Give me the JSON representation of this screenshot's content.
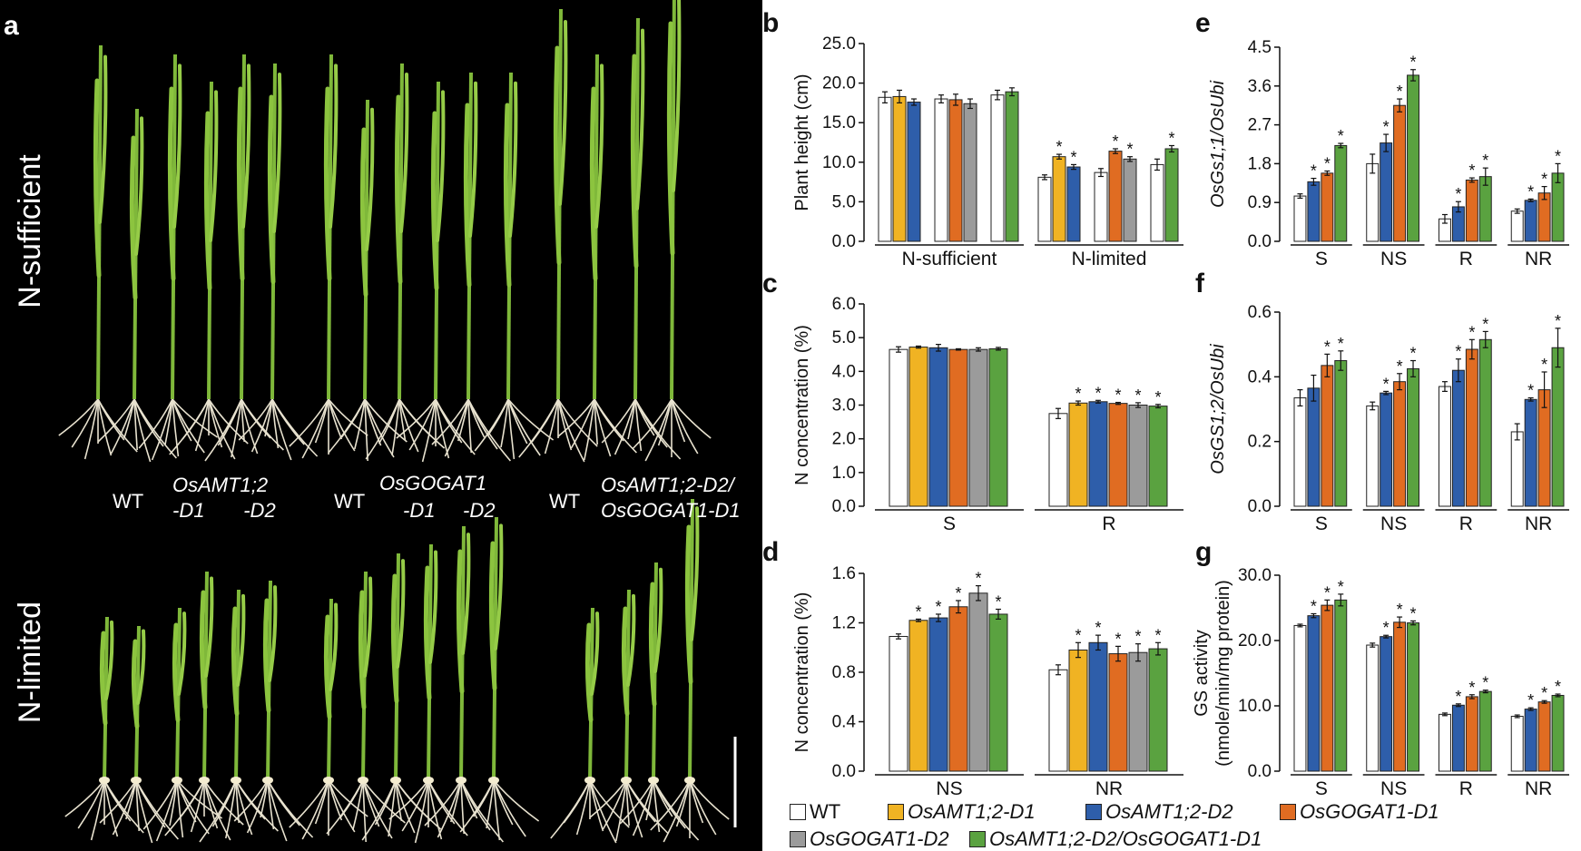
{
  "figure": {
    "panel_a": {
      "letter": "a",
      "conditions": [
        "N-sufficient",
        "N-limited"
      ],
      "genotype_labels": [
        {
          "lines": [
            "WT"
          ],
          "italic": false
        },
        {
          "lines": [
            "OsAMT1;2",
            "-D1       -D2"
          ],
          "italic": true
        },
        {
          "lines": [
            "WT"
          ],
          "italic": false
        },
        {
          "lines": [
            "OsGOGAT1",
            "-D1     -D2"
          ],
          "italic": true
        },
        {
          "lines": [
            "WT"
          ],
          "italic": false
        },
        {
          "lines": [
            "OsAMT1;2-D2/",
            "OsGOGAT1-D1"
          ],
          "italic": true
        }
      ]
    },
    "legend": [
      {
        "label": "WT",
        "color": "#ffffff",
        "italic": false
      },
      {
        "label": "OsAMT1;2-D1",
        "color": "#f0b323",
        "italic": true
      },
      {
        "label": "OsAMT1;2-D2",
        "color": "#2e5eaa",
        "italic": true
      },
      {
        "label": "OsGOGAT1-D1",
        "color": "#e06c22",
        "italic": true
      },
      {
        "label": "OsGOGAT1-D2",
        "color": "#9b9b9b",
        "italic": true
      },
      {
        "label": "OsAMT1;2-D2/OsGOGAT1-D1",
        "color": "#5aa240",
        "italic": true
      }
    ]
  },
  "chart_data": [
    {
      "panel": "b",
      "type": "bar",
      "ylabel": "Plant height (cm)",
      "ylabel_italic": false,
      "ylim": [
        0,
        25
      ],
      "yticks": [
        "0.0",
        "5.0",
        "10.0",
        "15.0",
        "20.0",
        "25.0"
      ],
      "groups": [
        {
          "label": "N-sufficient",
          "subgroups": [
            [
              {
                "s": 0,
                "v": 18.2,
                "e": 0.7
              },
              {
                "s": 1,
                "v": 18.3,
                "e": 0.8
              },
              {
                "s": 2,
                "v": 17.6,
                "e": 0.4
              }
            ],
            [
              {
                "s": 0,
                "v": 18.0,
                "e": 0.5
              },
              {
                "s": 3,
                "v": 17.9,
                "e": 0.7
              },
              {
                "s": 4,
                "v": 17.4,
                "e": 0.6
              }
            ],
            [
              {
                "s": 0,
                "v": 18.5,
                "e": 0.6
              },
              {
                "s": 5,
                "v": 18.9,
                "e": 0.5
              }
            ]
          ]
        },
        {
          "label": "N-limited",
          "subgroups": [
            [
              {
                "s": 0,
                "v": 8.1,
                "e": 0.3
              },
              {
                "s": 1,
                "v": 10.7,
                "e": 0.3,
                "star": true
              },
              {
                "s": 2,
                "v": 9.4,
                "e": 0.3,
                "star": true
              }
            ],
            [
              {
                "s": 0,
                "v": 8.7,
                "e": 0.5
              },
              {
                "s": 3,
                "v": 11.4,
                "e": 0.3,
                "star": true
              },
              {
                "s": 4,
                "v": 10.4,
                "e": 0.3,
                "star": true
              }
            ],
            [
              {
                "s": 0,
                "v": 9.7,
                "e": 0.7
              },
              {
                "s": 5,
                "v": 11.7,
                "e": 0.4,
                "star": true
              }
            ]
          ]
        }
      ]
    },
    {
      "panel": "c",
      "type": "bar",
      "ylabel": "N concentration (%)",
      "ylabel_italic": false,
      "ylim": [
        0,
        6
      ],
      "yticks": [
        "0.0",
        "1.0",
        "2.0",
        "3.0",
        "4.0",
        "5.0",
        "6.0"
      ],
      "groups": [
        {
          "label": "S",
          "subgroups": [
            [
              {
                "s": 0,
                "v": 4.65,
                "e": 0.08
              },
              {
                "s": 1,
                "v": 4.72,
                "e": 0.03
              },
              {
                "s": 2,
                "v": 4.7,
                "e": 0.1
              },
              {
                "s": 3,
                "v": 4.65,
                "e": 0.02
              },
              {
                "s": 4,
                "v": 4.65,
                "e": 0.05
              },
              {
                "s": 5,
                "v": 4.67,
                "e": 0.04
              }
            ]
          ]
        },
        {
          "label": "R",
          "subgroups": [
            [
              {
                "s": 0,
                "v": 2.75,
                "e": 0.15
              },
              {
                "s": 1,
                "v": 3.06,
                "e": 0.06,
                "star": true
              },
              {
                "s": 2,
                "v": 3.1,
                "e": 0.04,
                "star": true
              },
              {
                "s": 3,
                "v": 3.05,
                "e": 0.03,
                "star": true
              },
              {
                "s": 4,
                "v": 3.0,
                "e": 0.07,
                "star": true
              },
              {
                "s": 5,
                "v": 2.97,
                "e": 0.05,
                "star": true
              }
            ]
          ]
        }
      ]
    },
    {
      "panel": "d",
      "type": "bar",
      "ylabel": "N concentration (%)",
      "ylabel_italic": false,
      "ylim": [
        0,
        1.6
      ],
      "yticks": [
        "0.0",
        "0.4",
        "0.8",
        "1.2",
        "1.6"
      ],
      "groups": [
        {
          "label": "NS",
          "subgroups": [
            [
              {
                "s": 0,
                "v": 1.09,
                "e": 0.02
              },
              {
                "s": 1,
                "v": 1.22,
                "e": 0.01,
                "star": true
              },
              {
                "s": 2,
                "v": 1.24,
                "e": 0.03,
                "star": true
              },
              {
                "s": 3,
                "v": 1.33,
                "e": 0.05,
                "star": true
              },
              {
                "s": 4,
                "v": 1.44,
                "e": 0.06,
                "star": true
              },
              {
                "s": 5,
                "v": 1.27,
                "e": 0.04,
                "star": true
              }
            ]
          ]
        },
        {
          "label": "NR",
          "subgroups": [
            [
              {
                "s": 0,
                "v": 0.82,
                "e": 0.04
              },
              {
                "s": 1,
                "v": 0.98,
                "e": 0.06,
                "star": true
              },
              {
                "s": 2,
                "v": 1.04,
                "e": 0.06,
                "star": true
              },
              {
                "s": 3,
                "v": 0.95,
                "e": 0.06,
                "star": true
              },
              {
                "s": 4,
                "v": 0.96,
                "e": 0.07,
                "star": true
              },
              {
                "s": 5,
                "v": 0.99,
                "e": 0.05,
                "star": true
              }
            ]
          ]
        }
      ]
    },
    {
      "panel": "e",
      "type": "bar",
      "ylabel": "OsGs1;1/OsUbi",
      "ylabel_italic": true,
      "ylim": [
        0,
        4.5
      ],
      "yticks": [
        "0.0",
        "0.9",
        "1.8",
        "2.7",
        "3.6",
        "4.5"
      ],
      "groups": [
        {
          "label": "S",
          "subgroups": [
            [
              {
                "s": 0,
                "v": 1.05,
                "e": 0.05
              },
              {
                "s": 2,
                "v": 1.38,
                "e": 0.08,
                "star": true
              },
              {
                "s": 3,
                "v": 1.58,
                "e": 0.05,
                "star": true
              },
              {
                "s": 5,
                "v": 2.22,
                "e": 0.05,
                "star": true
              }
            ]
          ]
        },
        {
          "label": "NS",
          "subgroups": [
            [
              {
                "s": 0,
                "v": 1.8,
                "e": 0.22
              },
              {
                "s": 2,
                "v": 2.28,
                "e": 0.2,
                "star": true
              },
              {
                "s": 3,
                "v": 3.15,
                "e": 0.15,
                "star": true
              },
              {
                "s": 5,
                "v": 3.85,
                "e": 0.13,
                "star": true
              }
            ]
          ]
        },
        {
          "label": "R",
          "subgroups": [
            [
              {
                "s": 0,
                "v": 0.52,
                "e": 0.1
              },
              {
                "s": 2,
                "v": 0.8,
                "e": 0.12,
                "star": true
              },
              {
                "s": 3,
                "v": 1.42,
                "e": 0.05,
                "star": true
              },
              {
                "s": 5,
                "v": 1.5,
                "e": 0.2,
                "star": true
              }
            ]
          ]
        },
        {
          "label": "NR",
          "subgroups": [
            [
              {
                "s": 0,
                "v": 0.7,
                "e": 0.05
              },
              {
                "s": 2,
                "v": 0.95,
                "e": 0.03,
                "star": true
              },
              {
                "s": 3,
                "v": 1.12,
                "e": 0.15,
                "star": true
              },
              {
                "s": 5,
                "v": 1.58,
                "e": 0.22,
                "star": true
              }
            ]
          ]
        }
      ]
    },
    {
      "panel": "f",
      "type": "bar",
      "ylabel": "OsGS1;2/OsUbi",
      "ylabel_italic": true,
      "ylim": [
        0,
        0.6
      ],
      "yticks": [
        "0.0",
        "0.2",
        "0.4",
        "0.6"
      ],
      "groups": [
        {
          "label": "S",
          "subgroups": [
            [
              {
                "s": 0,
                "v": 0.335,
                "e": 0.025
              },
              {
                "s": 2,
                "v": 0.365,
                "e": 0.04
              },
              {
                "s": 3,
                "v": 0.435,
                "e": 0.035,
                "star": true
              },
              {
                "s": 5,
                "v": 0.45,
                "e": 0.03,
                "star": true
              }
            ]
          ]
        },
        {
          "label": "NS",
          "subgroups": [
            [
              {
                "s": 0,
                "v": 0.31,
                "e": 0.012
              },
              {
                "s": 2,
                "v": 0.35,
                "e": 0.005,
                "star": true
              },
              {
                "s": 3,
                "v": 0.385,
                "e": 0.025,
                "star": true
              },
              {
                "s": 5,
                "v": 0.425,
                "e": 0.025,
                "star": true
              }
            ]
          ]
        },
        {
          "label": "R",
          "subgroups": [
            [
              {
                "s": 0,
                "v": 0.37,
                "e": 0.015
              },
              {
                "s": 2,
                "v": 0.42,
                "e": 0.035,
                "star": true
              },
              {
                "s": 3,
                "v": 0.485,
                "e": 0.03,
                "star": true
              },
              {
                "s": 5,
                "v": 0.515,
                "e": 0.025,
                "star": true
              }
            ]
          ]
        },
        {
          "label": "NR",
          "subgroups": [
            [
              {
                "s": 0,
                "v": 0.23,
                "e": 0.025
              },
              {
                "s": 2,
                "v": 0.33,
                "e": 0.005,
                "star": true
              },
              {
                "s": 3,
                "v": 0.36,
                "e": 0.055,
                "star": true
              },
              {
                "s": 5,
                "v": 0.49,
                "e": 0.06,
                "star": true
              }
            ]
          ]
        }
      ]
    },
    {
      "panel": "g",
      "type": "bar",
      "ylabel": "GS activity",
      "ylabel2": "(nmole/min/mg protein)",
      "ylabel_italic": false,
      "ylim": [
        0,
        30
      ],
      "yticks": [
        "0.0",
        "10.0",
        "20.0",
        "30.0"
      ],
      "groups": [
        {
          "label": "S",
          "subgroups": [
            [
              {
                "s": 0,
                "v": 22.3,
                "e": 0.2
              },
              {
                "s": 2,
                "v": 23.8,
                "e": 0.3,
                "star": true
              },
              {
                "s": 3,
                "v": 25.4,
                "e": 0.8,
                "star": true
              },
              {
                "s": 5,
                "v": 26.2,
                "e": 0.9,
                "star": true
              }
            ]
          ]
        },
        {
          "label": "NS",
          "subgroups": [
            [
              {
                "s": 0,
                "v": 19.3,
                "e": 0.3
              },
              {
                "s": 2,
                "v": 20.6,
                "e": 0.2,
                "star": true
              },
              {
                "s": 3,
                "v": 22.8,
                "e": 0.8,
                "star": true
              },
              {
                "s": 5,
                "v": 22.7,
                "e": 0.3,
                "star": true
              }
            ]
          ]
        },
        {
          "label": "R",
          "subgroups": [
            [
              {
                "s": 0,
                "v": 8.7,
                "e": 0.2
              },
              {
                "s": 2,
                "v": 10.1,
                "e": 0.2,
                "star": true
              },
              {
                "s": 3,
                "v": 11.4,
                "e": 0.3,
                "star": true
              },
              {
                "s": 5,
                "v": 12.2,
                "e": 0.2,
                "star": true
              }
            ]
          ]
        },
        {
          "label": "NR",
          "subgroups": [
            [
              {
                "s": 0,
                "v": 8.4,
                "e": 0.2
              },
              {
                "s": 2,
                "v": 9.5,
                "e": 0.2,
                "star": true
              },
              {
                "s": 3,
                "v": 10.6,
                "e": 0.2,
                "star": true
              },
              {
                "s": 5,
                "v": 11.6,
                "e": 0.2,
                "star": true
              }
            ]
          ]
        }
      ]
    }
  ]
}
